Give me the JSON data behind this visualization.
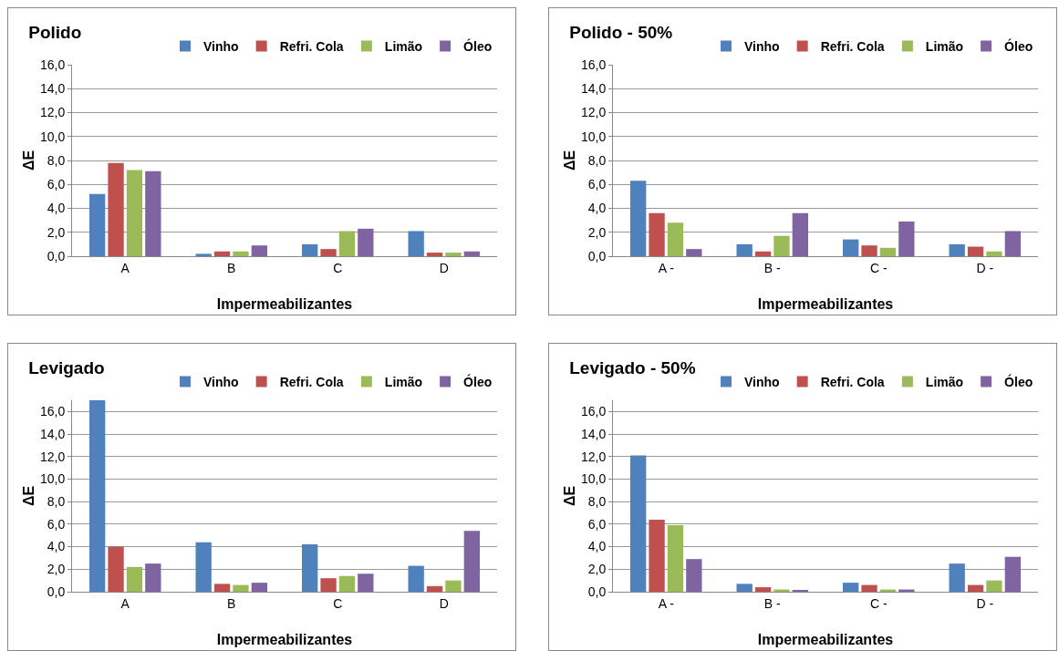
{
  "chart_data": [
    {
      "type": "bar",
      "title": "Polido",
      "xlabel": "Impermeabilizantes",
      "ylabel": "ΔE",
      "categories": [
        "A",
        "B",
        "C",
        "D"
      ],
      "series": [
        {
          "name": "Vinho",
          "color": "#4f81bd",
          "values": [
            5.2,
            0.2,
            1.0,
            2.1
          ]
        },
        {
          "name": "Refri. Cola",
          "color": "#c0504d",
          "values": [
            7.8,
            0.4,
            0.6,
            0.3
          ]
        },
        {
          "name": "Limão",
          "color": "#9bbb59",
          "values": [
            7.2,
            0.4,
            2.1,
            0.3
          ]
        },
        {
          "name": "Óleo",
          "color": "#8064a2",
          "values": [
            7.1,
            0.9,
            2.3,
            0.4
          ]
        }
      ],
      "ylim": [
        0,
        16
      ],
      "yticks": [
        {
          "value": 0,
          "label": "0,0"
        },
        {
          "value": 2,
          "label": "2,0"
        },
        {
          "value": 4,
          "label": "4,0"
        },
        {
          "value": 6,
          "label": "6,0"
        },
        {
          "value": 8,
          "label": "8,0"
        },
        {
          "value": 10,
          "label": "10,0"
        },
        {
          "value": 12,
          "label": "12,0"
        },
        {
          "value": 14,
          "label": "14,0"
        },
        {
          "value": 16,
          "label": "16,0"
        }
      ],
      "grid": "y",
      "legend": "top right"
    },
    {
      "type": "bar",
      "title": "Polido - 50%",
      "xlabel": "Impermeabilizantes",
      "ylabel": "ΔE",
      "categories": [
        "A -",
        "B -",
        "C -",
        "D -"
      ],
      "series": [
        {
          "name": "Vinho",
          "color": "#4f81bd",
          "values": [
            6.3,
            1.0,
            1.4,
            1.0
          ]
        },
        {
          "name": "Refri. Cola",
          "color": "#c0504d",
          "values": [
            3.6,
            0.4,
            0.9,
            0.8
          ]
        },
        {
          "name": "Limão",
          "color": "#9bbb59",
          "values": [
            2.8,
            1.7,
            0.7,
            0.4
          ]
        },
        {
          "name": "Óleo",
          "color": "#8064a2",
          "values": [
            0.6,
            3.6,
            2.9,
            2.1
          ]
        }
      ],
      "ylim": [
        0,
        16
      ],
      "yticks": [
        {
          "value": 0,
          "label": "0,0"
        },
        {
          "value": 2,
          "label": "2,0"
        },
        {
          "value": 4,
          "label": "4,0"
        },
        {
          "value": 6,
          "label": "6,0"
        },
        {
          "value": 8,
          "label": "8,0"
        },
        {
          "value": 10,
          "label": "10,0"
        },
        {
          "value": 12,
          "label": "12,0"
        },
        {
          "value": 14,
          "label": "14,0"
        },
        {
          "value": 16,
          "label": "16,0"
        }
      ],
      "grid": "y",
      "legend": "top right"
    },
    {
      "type": "bar",
      "title": "Levigado",
      "xlabel": "Impermeabilizantes",
      "ylabel": "ΔE",
      "categories": [
        "A",
        "B",
        "C",
        "D"
      ],
      "series": [
        {
          "name": "Vinho",
          "color": "#4f81bd",
          "values": [
            17.0,
            4.4,
            4.2,
            2.3
          ]
        },
        {
          "name": "Refri. Cola",
          "color": "#c0504d",
          "values": [
            4.0,
            0.7,
            1.2,
            0.5
          ]
        },
        {
          "name": "Limão",
          "color": "#9bbb59",
          "values": [
            2.2,
            0.6,
            1.4,
            1.0
          ]
        },
        {
          "name": "Óleo",
          "color": "#8064a2",
          "values": [
            2.5,
            0.8,
            1.6,
            5.4
          ]
        }
      ],
      "ylim": [
        0,
        17
      ],
      "yticks": [
        {
          "value": 0,
          "label": "0,0"
        },
        {
          "value": 2,
          "label": "2,0"
        },
        {
          "value": 4,
          "label": "4,0"
        },
        {
          "value": 6,
          "label": "6,0"
        },
        {
          "value": 8,
          "label": "8,0"
        },
        {
          "value": 10,
          "label": "10,0"
        },
        {
          "value": 12,
          "label": "12,0"
        },
        {
          "value": 14,
          "label": "14,0"
        },
        {
          "value": 16,
          "label": "16,0"
        }
      ],
      "grid": "y",
      "legend": "top right"
    },
    {
      "type": "bar",
      "title": "Levigado - 50%",
      "xlabel": "Impermeabilizantes",
      "ylabel": "ΔE",
      "categories": [
        "A -",
        "B -",
        "C -",
        "D -"
      ],
      "series": [
        {
          "name": "Vinho",
          "color": "#4f81bd",
          "values": [
            12.1,
            0.7,
            0.8,
            2.5
          ]
        },
        {
          "name": "Refri. Cola",
          "color": "#c0504d",
          "values": [
            6.4,
            0.4,
            0.6,
            0.6
          ]
        },
        {
          "name": "Limão",
          "color": "#9bbb59",
          "values": [
            5.9,
            0.2,
            0.2,
            1.0
          ]
        },
        {
          "name": "Óleo",
          "color": "#8064a2",
          "values": [
            2.9,
            0.1,
            0.2,
            3.1
          ]
        }
      ],
      "ylim": [
        0,
        17
      ],
      "yticks": [
        {
          "value": 0,
          "label": "0,0"
        },
        {
          "value": 2,
          "label": "2,0"
        },
        {
          "value": 4,
          "label": "4,0"
        },
        {
          "value": 6,
          "label": "6,0"
        },
        {
          "value": 8,
          "label": "8,0"
        },
        {
          "value": 10,
          "label": "10,0"
        },
        {
          "value": 12,
          "label": "12,0"
        },
        {
          "value": 14,
          "label": "14,0"
        },
        {
          "value": 16,
          "label": "16,0"
        }
      ],
      "grid": "y",
      "legend": "top right"
    }
  ]
}
